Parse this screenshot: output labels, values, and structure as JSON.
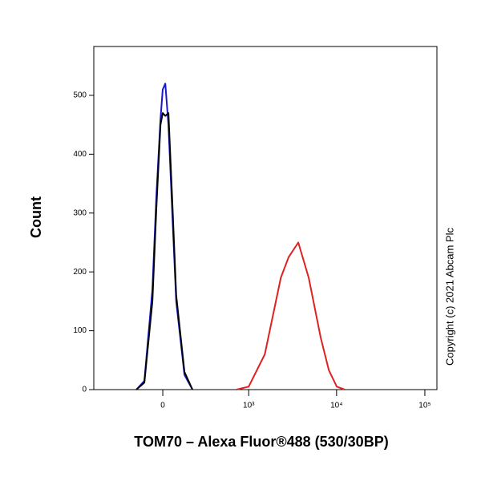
{
  "chart_data": {
    "type": "line",
    "x_label": "TOM70 – Alexa Fluor®488 (530/30BP)",
    "y_label": "Count",
    "annotation": "Copyright (c) 2021 Abcam Plc",
    "x_scale": "biexponential",
    "xlim": [
      -632,
      137000
    ],
    "xticks": [
      0,
      {
        "value": 1000,
        "label": "10³"
      },
      {
        "value": 10000,
        "label": "10⁴"
      },
      {
        "value": 100000,
        "label": "10⁵"
      }
    ],
    "ylim": [
      0,
      583
    ],
    "yticks": [
      0,
      100,
      200,
      300,
      400,
      500
    ],
    "series": [
      {
        "color": "#1a1acc",
        "x": [
          -160,
          -107,
          -59,
          -36,
          -13,
          0,
          14,
          32,
          54,
          77,
          128,
          184
        ],
        "values": [
          0,
          15,
          170,
          330,
          460,
          510,
          520,
          450,
          300,
          150,
          25,
          0
        ]
      },
      {
        "color": "#000000",
        "x": [
          -160,
          -107,
          -59,
          -36,
          -13,
          0,
          14,
          32,
          54,
          77,
          128,
          184
        ],
        "values": [
          0,
          12,
          150,
          310,
          450,
          470,
          465,
          470,
          320,
          160,
          30,
          0
        ]
      },
      {
        "color": "#dd2222",
        "x": [
          720,
          1000,
          1530,
          2330,
          2860,
          3680,
          4840,
          6620,
          8170,
          10060,
          12400
        ],
        "values": [
          0,
          5,
          60,
          190,
          225,
          250,
          190,
          88,
          33,
          5,
          0
        ]
      }
    ]
  }
}
